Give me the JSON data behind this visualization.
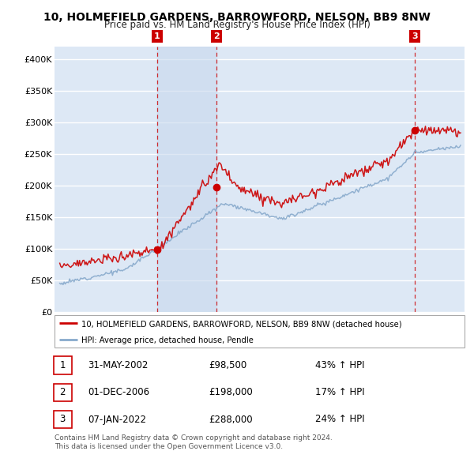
{
  "title": "10, HOLMEFIELD GARDENS, BARROWFORD, NELSON, BB9 8NW",
  "subtitle": "Price paid vs. HM Land Registry's House Price Index (HPI)",
  "legend_line1": "10, HOLMEFIELD GARDENS, BARROWFORD, NELSON, BB9 8NW (detached house)",
  "legend_line2": "HPI: Average price, detached house, Pendle",
  "footnote1": "Contains HM Land Registry data © Crown copyright and database right 2024.",
  "footnote2": "This data is licensed under the Open Government Licence v3.0.",
  "table": [
    {
      "num": "1",
      "date": "31-MAY-2002",
      "price": "£98,500",
      "change": "43% ↑ HPI"
    },
    {
      "num": "2",
      "date": "01-DEC-2006",
      "price": "£198,000",
      "change": "17% ↑ HPI"
    },
    {
      "num": "3",
      "date": "07-JAN-2022",
      "price": "£288,000",
      "change": "24% ↑ HPI"
    }
  ],
  "sale_years": [
    2002.41,
    2006.92,
    2022.02
  ],
  "sale_prices": [
    98500,
    198000,
    288000
  ],
  "sale_labels": [
    "1",
    "2",
    "3"
  ],
  "ylim": [
    0,
    420000
  ],
  "yticks": [
    0,
    50000,
    100000,
    150000,
    200000,
    250000,
    300000,
    350000,
    400000
  ],
  "ytick_labels": [
    "£0",
    "£50K",
    "£100K",
    "£150K",
    "£200K",
    "£250K",
    "£300K",
    "£350K",
    "£400K"
  ],
  "line_color_red": "#cc0000",
  "line_color_blue": "#88aacc",
  "vline_color": "#cc0000",
  "bg_color": "#dde8f5",
  "grid_color": "#ffffff",
  "shade_color": "#c8d8ee",
  "box_color": "#cc0000"
}
